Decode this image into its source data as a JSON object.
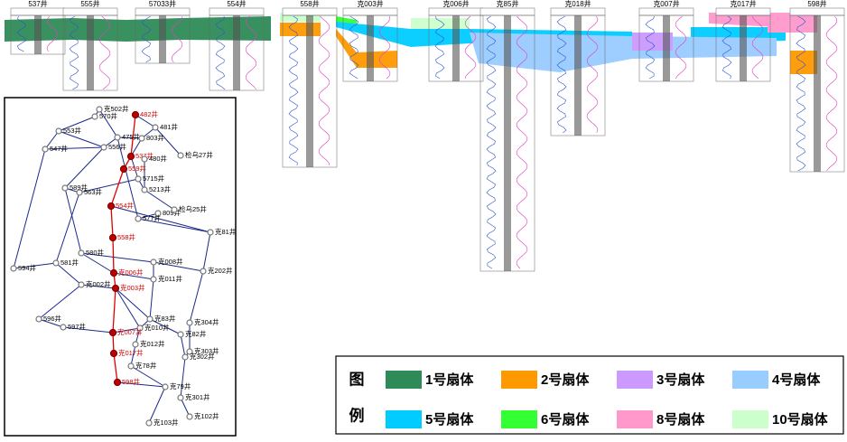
{
  "section": {
    "wells": [
      "537井",
      "555井",
      "57033井",
      "554井",
      "558井",
      "克003井",
      "克006井",
      "克85井",
      "克018井",
      "克007井",
      "克017井",
      "598井"
    ]
  },
  "map": {
    "wells": [
      {
        "label": "克502井",
        "color": "#000000"
      },
      {
        "label": "570井",
        "color": "#000000"
      },
      {
        "label": "482井",
        "color": "#d00000"
      },
      {
        "label": "481井",
        "color": "#000000"
      },
      {
        "label": "553井",
        "color": "#000000"
      },
      {
        "label": "475井",
        "color": "#000000"
      },
      {
        "label": "803井",
        "color": "#000000"
      },
      {
        "label": "547井",
        "color": "#000000"
      },
      {
        "label": "556井",
        "color": "#000000"
      },
      {
        "label": "537井",
        "color": "#d00000"
      },
      {
        "label": "480井",
        "color": "#000000"
      },
      {
        "label": "检乌27井",
        "color": "#000000"
      },
      {
        "label": "559井",
        "color": "#d00000"
      },
      {
        "label": "5715井",
        "color": "#000000"
      },
      {
        "label": "589井",
        "color": "#000000"
      },
      {
        "label": "563井",
        "color": "#000000"
      },
      {
        "label": "5213井",
        "color": "#000000"
      },
      {
        "label": "554井",
        "color": "#d00000"
      },
      {
        "label": "809井",
        "color": "#000000"
      },
      {
        "label": "检乌25井",
        "color": "#000000"
      },
      {
        "label": "577井",
        "color": "#000000"
      },
      {
        "label": "克81井",
        "color": "#000000"
      },
      {
        "label": "558井",
        "color": "#d00000"
      },
      {
        "label": "580井",
        "color": "#000000"
      },
      {
        "label": "594井",
        "color": "#000000"
      },
      {
        "label": "581井",
        "color": "#000000"
      },
      {
        "label": "克008井",
        "color": "#000000"
      },
      {
        "label": "克202井",
        "color": "#000000"
      },
      {
        "label": "克006井",
        "color": "#d00000"
      },
      {
        "label": "克011井",
        "color": "#000000"
      },
      {
        "label": "克002井",
        "color": "#000000"
      },
      {
        "label": "克003井",
        "color": "#d00000"
      },
      {
        "label": "596井",
        "color": "#000000"
      },
      {
        "label": "克83井",
        "color": "#000000"
      },
      {
        "label": "克304井",
        "color": "#000000"
      },
      {
        "label": "克010井",
        "color": "#000000"
      },
      {
        "label": "597井",
        "color": "#000000"
      },
      {
        "label": "克007井",
        "color": "#d00000"
      },
      {
        "label": "克012井",
        "color": "#000000"
      },
      {
        "label": "克82井",
        "color": "#000000"
      },
      {
        "label": "克303井",
        "color": "#000000"
      },
      {
        "label": "克017井",
        "color": "#d00000"
      },
      {
        "label": "克302井",
        "color": "#000000"
      },
      {
        "label": "克78井",
        "color": "#000000"
      },
      {
        "label": "598井",
        "color": "#d00000"
      },
      {
        "label": "克79井",
        "color": "#000000"
      },
      {
        "label": "克301井",
        "color": "#000000"
      },
      {
        "label": "克102井",
        "color": "#000000"
      },
      {
        "label": "克103井",
        "color": "#000000"
      }
    ]
  },
  "legend": {
    "title": [
      "图",
      "例"
    ],
    "items": [
      {
        "label": "1号扇体",
        "color": "#2e8b57"
      },
      {
        "label": "2号扇体",
        "color": "#ff9900"
      },
      {
        "label": "3号扇体",
        "color": "#cc99ff"
      },
      {
        "label": "4号扇体",
        "color": "#99ccff"
      },
      {
        "label": "5号扇体",
        "color": "#00ccff"
      },
      {
        "label": "6号扇体",
        "color": "#33ff33"
      },
      {
        "label": "8号扇体",
        "color": "#ff99cc"
      },
      {
        "label": "10号扇体",
        "color": "#ccffcc"
      }
    ]
  }
}
